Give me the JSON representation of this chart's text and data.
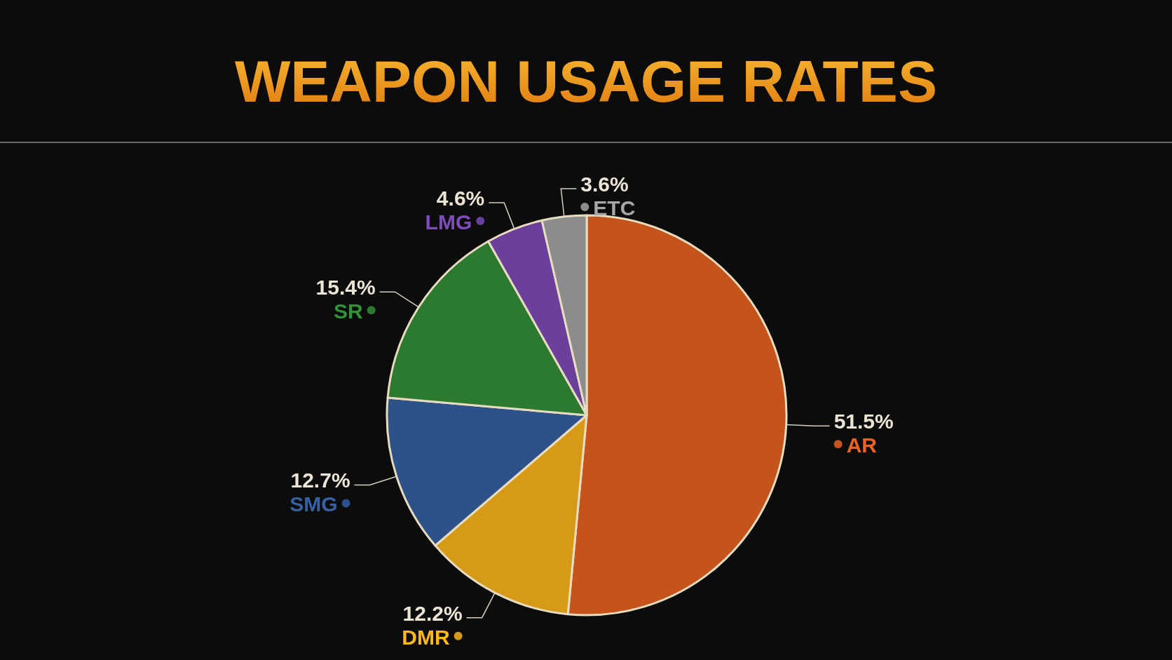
{
  "chart_data": {
    "type": "pie",
    "title": "WEAPON USAGE RATES",
    "categories": [
      "AR",
      "DMR",
      "SMG",
      "SR",
      "LMG",
      "ETC"
    ],
    "values": [
      51.5,
      12.2,
      12.7,
      15.4,
      4.6,
      3.6
    ],
    "value_labels": [
      "51.5%",
      "12.2%",
      "12.7%",
      "15.4%",
      "4.6%",
      "3.6%"
    ],
    "legend": "left",
    "colors": [
      "#c4531c",
      "#d69a16",
      "#2d5289",
      "#2b7a2f",
      "#6b3f9c",
      "#8c8c8c"
    ]
  }
}
